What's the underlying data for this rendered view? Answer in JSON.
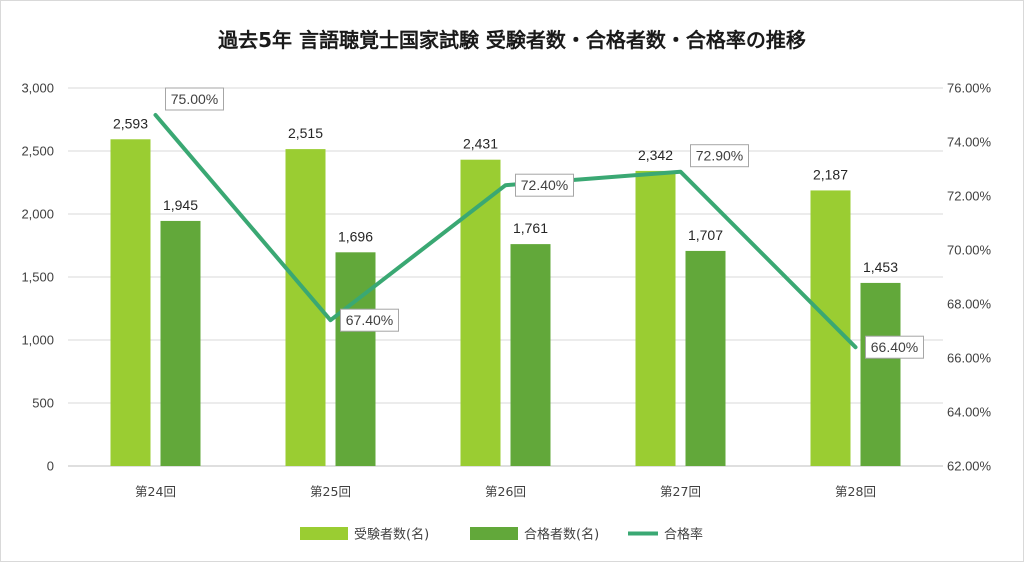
{
  "chart_data": {
    "type": "bar",
    "title": "過去5年 言語聴覚士国家試験 受験者数・合格者数・合格率の推移",
    "categories": [
      "第24回",
      "第25回",
      "第26回",
      "第27回",
      "第28回"
    ],
    "series": [
      {
        "name": "受験者数(名)",
        "type": "bar",
        "axis": "left",
        "color": "#9acd32",
        "values": [
          2593,
          2515,
          2431,
          2342,
          2187
        ],
        "labels": [
          "2,593",
          "2,515",
          "2,431",
          "2,342",
          "2,187"
        ]
      },
      {
        "name": "合格者数(名)",
        "type": "bar",
        "axis": "left",
        "color": "#62a83a",
        "values": [
          1945,
          1696,
          1761,
          1707,
          1453
        ],
        "labels": [
          "1,945",
          "1,696",
          "1,761",
          "1,707",
          "1,453"
        ]
      },
      {
        "name": "合格率",
        "type": "line",
        "axis": "right",
        "color": "#3aa873",
        "values": [
          75.0,
          67.4,
          72.4,
          72.9,
          66.4
        ],
        "labels": [
          "75.00%",
          "67.40%",
          "72.40%",
          "72.90%",
          "66.40%"
        ]
      }
    ],
    "y_left": {
      "range": [
        0,
        3000
      ],
      "ticks": [
        0,
        500,
        1000,
        1500,
        2000,
        2500,
        3000
      ],
      "tick_labels": [
        "0",
        "500",
        "1,000",
        "1,500",
        "2,000",
        "2,500",
        "3,000"
      ]
    },
    "y_right": {
      "range": [
        62,
        76
      ],
      "ticks": [
        62,
        64,
        66,
        68,
        70,
        72,
        74,
        76
      ],
      "tick_labels": [
        "62.00%",
        "64.00%",
        "66.00%",
        "68.00%",
        "70.00%",
        "72.00%",
        "74.00%",
        "76.00%"
      ]
    },
    "grid": true,
    "legend_position": "bottom"
  }
}
